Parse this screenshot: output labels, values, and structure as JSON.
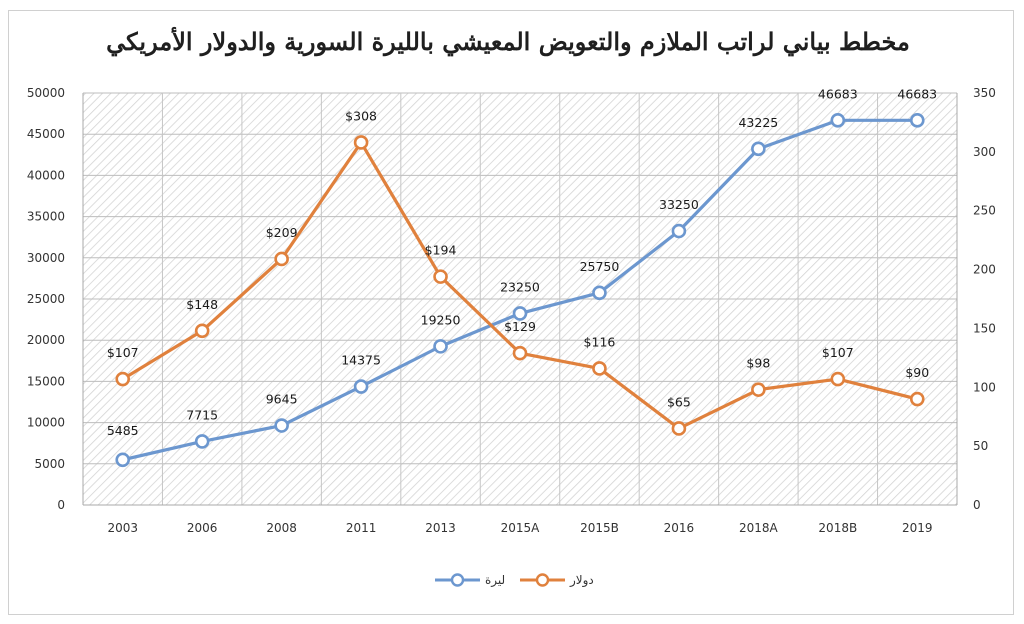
{
  "chart_data": {
    "type": "line",
    "title": "مخطط بياني لراتب الملازم والتعويض المعيشي بالليرة السورية والدولار الأمريكي",
    "categories": [
      "2003",
      "2006",
      "2008",
      "2011",
      "2013",
      "2015A",
      "2015B",
      "2016",
      "2018A",
      "2018B",
      "2019"
    ],
    "series": [
      {
        "name": "ليرة",
        "axis": "left",
        "color": "#6c97cf",
        "values": [
          5485,
          7715,
          9645,
          14375,
          19250,
          23250,
          25750,
          33250,
          43225,
          46683,
          46683
        ],
        "labels": [
          "5485",
          "7715",
          "9645",
          "14375",
          "19250",
          "23250",
          "25750",
          "33250",
          "43225",
          "46683",
          "46683"
        ]
      },
      {
        "name": "دولار",
        "axis": "right",
        "color": "#e0813d",
        "values": [
          107,
          148,
          209,
          308,
          194,
          129,
          116,
          65,
          98,
          107,
          90
        ],
        "labels": [
          "$107",
          "$148",
          "$209",
          "$308",
          "$194",
          "$129",
          "$116",
          "$65",
          "$98",
          "$107",
          "$90"
        ]
      }
    ],
    "y_left": {
      "min": 0,
      "max": 50000,
      "step": 5000
    },
    "y_right": {
      "min": 0,
      "max": 350,
      "step": 50
    },
    "grid": true,
    "legend": "bottom-center"
  }
}
